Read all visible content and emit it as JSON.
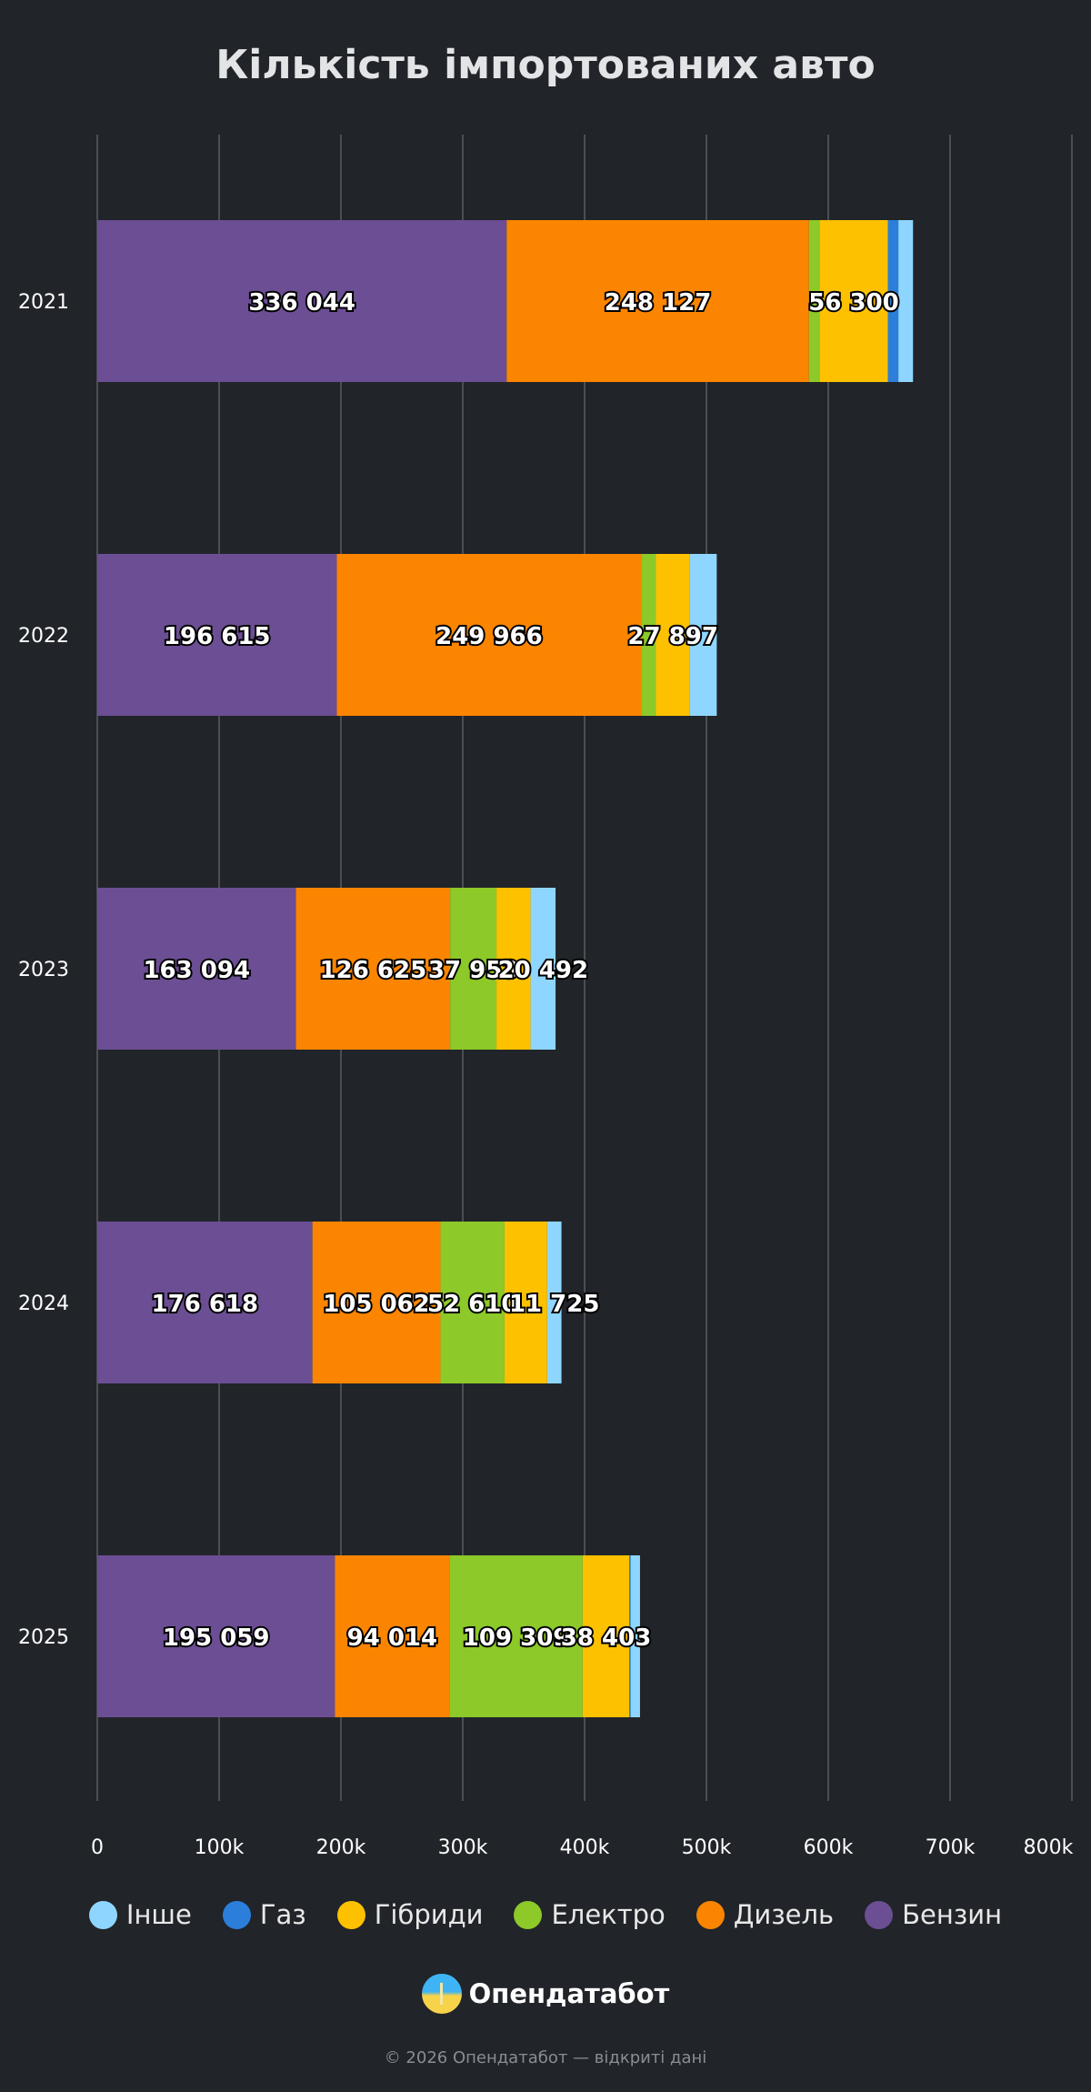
{
  "chart_data": {
    "type": "bar",
    "orientation": "horizontal",
    "stacked": true,
    "title": "Кількість імпортованих авто",
    "categories": [
      "2021",
      "2022",
      "2023",
      "2024",
      "2025"
    ],
    "xlim": [
      0,
      800000
    ],
    "x_ticks": [
      "0",
      "100k",
      "200k",
      "300k",
      "400k",
      "500k",
      "600k",
      "700k",
      "800k"
    ],
    "grid": true,
    "legend_placement": "bottom",
    "series": [
      {
        "name": "Бензин",
        "color": "#6b4e93",
        "values": [
          336044,
          196615,
          163094,
          176618,
          195059
        ],
        "labels": [
          "336 044",
          "196 615",
          "163 094",
          "176 618",
          "195 059"
        ]
      },
      {
        "name": "Дизель",
        "color": "#fb8500",
        "values": [
          248127,
          249966,
          126625,
          105062,
          94014
        ],
        "labels": [
          "248 127",
          "249 966",
          "126 625",
          "105 062",
          "94 014"
        ]
      },
      {
        "name": "Електро",
        "color": "#8cc929",
        "values": [
          8600,
          12000,
          37953,
          52610,
          109309
        ],
        "labels": [
          null,
          null,
          "37 953",
          "52 610",
          "109 309"
        ]
      },
      {
        "name": "Гібриди",
        "color": "#fdc100",
        "values": [
          56300,
          27897,
          28000,
          35000,
          38403
        ],
        "labels": [
          "56 300",
          "27 897",
          null,
          null,
          "38 403"
        ]
      },
      {
        "name": "Газ",
        "color": "#2b7fdb",
        "values": [
          8500,
          0,
          0,
          0,
          1000
        ],
        "labels": [
          null,
          null,
          null,
          null,
          null
        ]
      },
      {
        "name": "Інше",
        "color": "#8ed6ff",
        "values": [
          12000,
          22000,
          20492,
          11725,
          7700
        ],
        "labels": [
          null,
          null,
          "20 492",
          "11 725",
          null
        ]
      }
    ],
    "legend_order": [
      "Інше",
      "Газ",
      "Гібриди",
      "Електро",
      "Дизель",
      "Бензин"
    ]
  },
  "brand": "Опендатабот",
  "footer": "© 2026 Опендатабот — відкриті дані"
}
